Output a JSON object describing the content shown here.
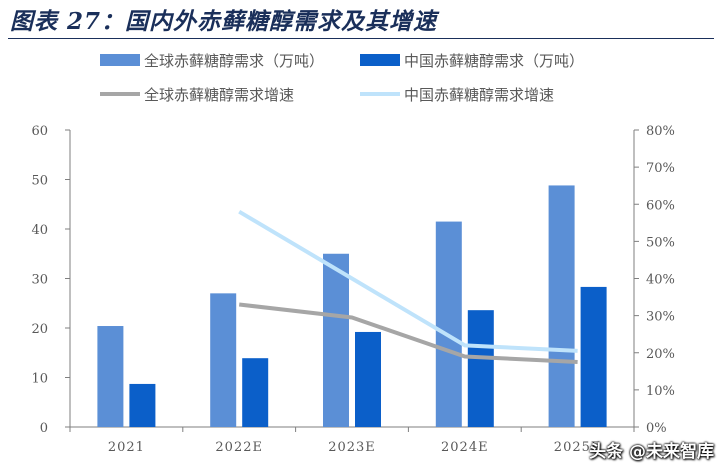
{
  "header": {
    "title": "图表 27：国内外赤藓糖醇需求及其增速"
  },
  "watermark": "头条 @未来智库",
  "colors": {
    "global_bar": "#5b8fd6",
    "china_bar": "#0b5fc9",
    "global_line": "#a6a6a6",
    "china_line": "#bfe3fb",
    "axis": "#7f7f7f",
    "text": "#595959"
  },
  "chart_data": {
    "type": "bar",
    "categories": [
      "2021",
      "2022E",
      "2023E",
      "2024E",
      "2025E"
    ],
    "series": [
      {
        "name": "全球赤藓糖醇需求（万吨）",
        "kind": "bar",
        "axis": "left",
        "values": [
          20.4,
          27.0,
          35.0,
          41.5,
          48.8
        ]
      },
      {
        "name": "中国赤藓糖醇需求（万吨）",
        "kind": "bar",
        "axis": "left",
        "values": [
          8.7,
          13.9,
          19.2,
          23.6,
          28.3
        ]
      },
      {
        "name": "全球赤藓糖醇需求增速",
        "kind": "line",
        "axis": "right",
        "values": [
          null,
          0.33,
          0.295,
          0.19,
          0.175
        ]
      },
      {
        "name": "中国赤藓糖醇需求增速",
        "kind": "line",
        "axis": "right",
        "values": [
          null,
          0.58,
          0.4,
          0.22,
          0.205
        ]
      }
    ],
    "y_left": {
      "min": 0,
      "max": 60,
      "ticks": [
        "0",
        "10",
        "20",
        "30",
        "40",
        "50",
        "60"
      ]
    },
    "y_right": {
      "min": 0,
      "max": 0.8,
      "ticks": [
        "0%",
        "10%",
        "20%",
        "30%",
        "40%",
        "50%",
        "60%",
        "70%",
        "80%"
      ]
    },
    "grid": false,
    "legend": "top"
  }
}
